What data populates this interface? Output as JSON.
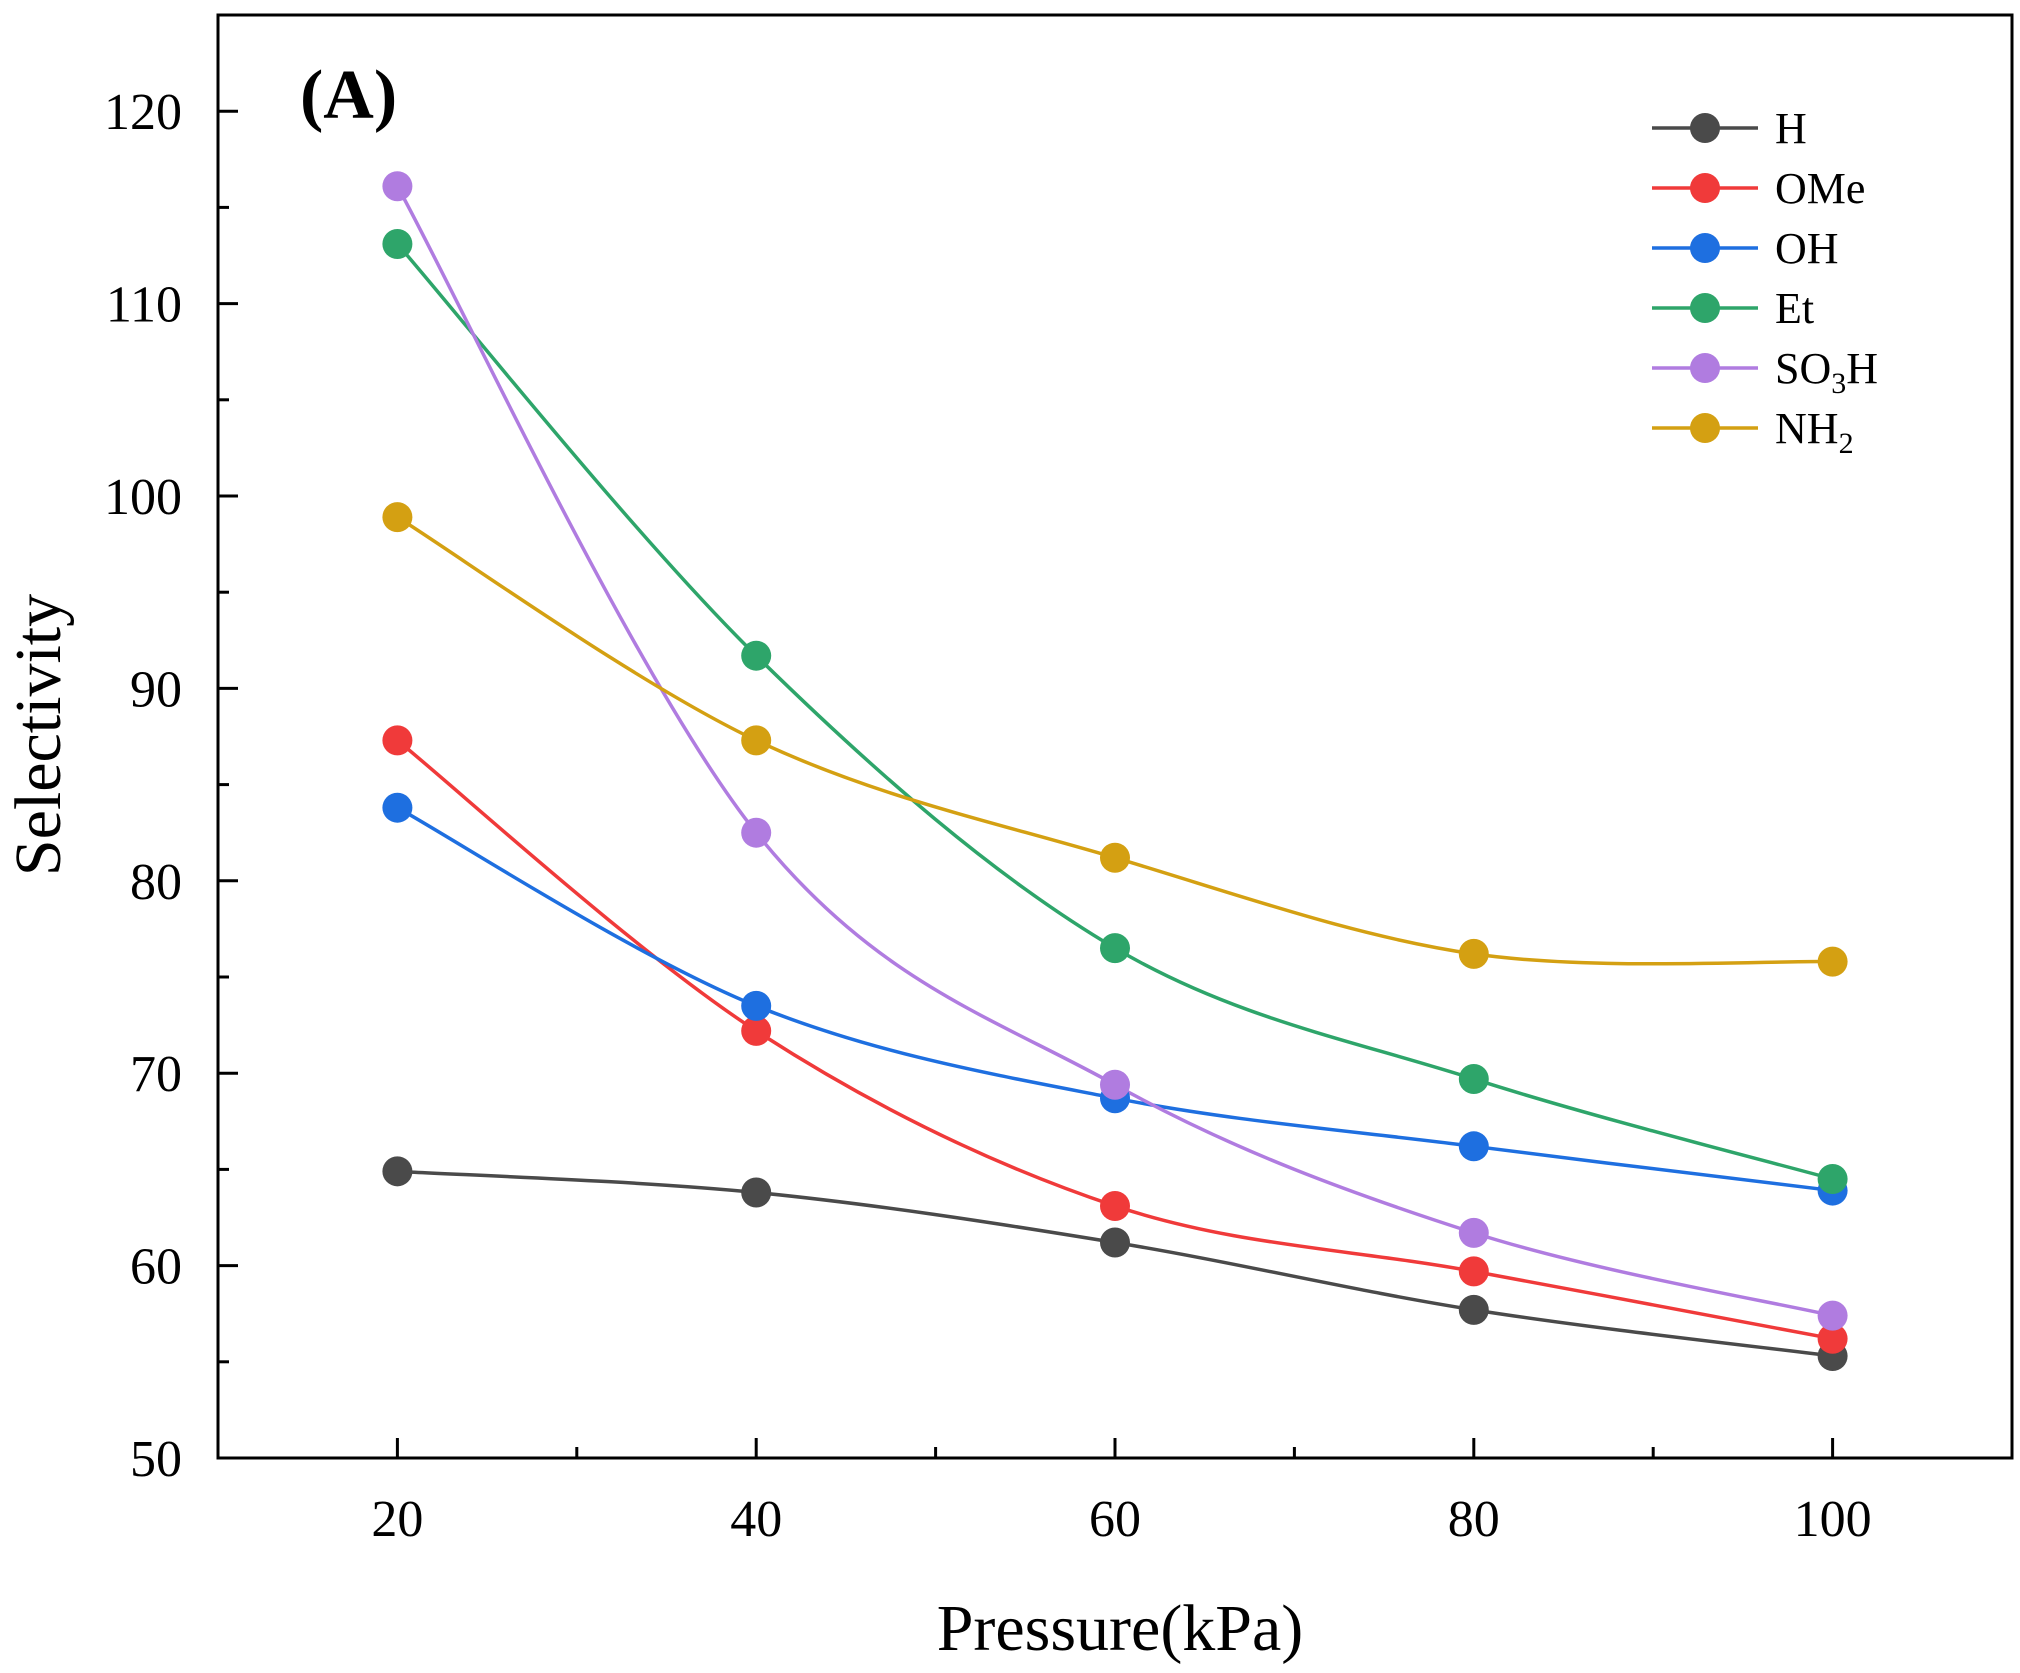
{
  "chart_data": {
    "type": "line",
    "panel_label": "(A)",
    "title": "",
    "xlabel": "Pressure(kPa)",
    "ylabel": "Selectivity",
    "xlim": [
      10,
      110
    ],
    "ylim": [
      50,
      125
    ],
    "x_ticks": [
      20,
      40,
      60,
      80,
      100
    ],
    "x_tick_labels": [
      "20",
      "40",
      "60",
      "80",
      "100"
    ],
    "x_minor_ticks": [
      30,
      50,
      70,
      90
    ],
    "y_ticks": [
      50,
      60,
      70,
      80,
      90,
      100,
      110,
      120
    ],
    "y_tick_labels": [
      "50",
      "60",
      "70",
      "80",
      "90",
      "100",
      "110",
      "120"
    ],
    "y_minor_ticks": [
      55,
      65,
      75,
      85,
      95,
      105,
      115
    ],
    "grid": false,
    "legend_position": "top-right",
    "x": [
      20,
      40,
      60,
      80,
      100
    ],
    "series": [
      {
        "name": "H",
        "sub": "",
        "color": "#4a4a4a",
        "values": [
          64.9,
          63.8,
          61.2,
          57.7,
          55.3
        ]
      },
      {
        "name": "OMe",
        "sub": "",
        "color": "#f03a3a",
        "values": [
          87.3,
          72.2,
          63.1,
          59.7,
          56.2
        ]
      },
      {
        "name": "OH",
        "sub": "",
        "color": "#1e6fe0",
        "values": [
          83.8,
          73.5,
          68.7,
          66.2,
          63.9
        ]
      },
      {
        "name": "Et",
        "sub": "",
        "color": "#2ea56a",
        "values": [
          113.1,
          91.7,
          76.5,
          69.7,
          64.5
        ]
      },
      {
        "name": "SO",
        "sub": "3",
        "suffix": "H",
        "color": "#b07ce0",
        "values": [
          116.1,
          82.5,
          69.4,
          61.7,
          57.4
        ]
      },
      {
        "name": "NH",
        "sub": "2",
        "suffix": "",
        "color": "#d4a012",
        "values": [
          98.9,
          87.3,
          81.2,
          76.2,
          75.8
        ]
      }
    ]
  }
}
